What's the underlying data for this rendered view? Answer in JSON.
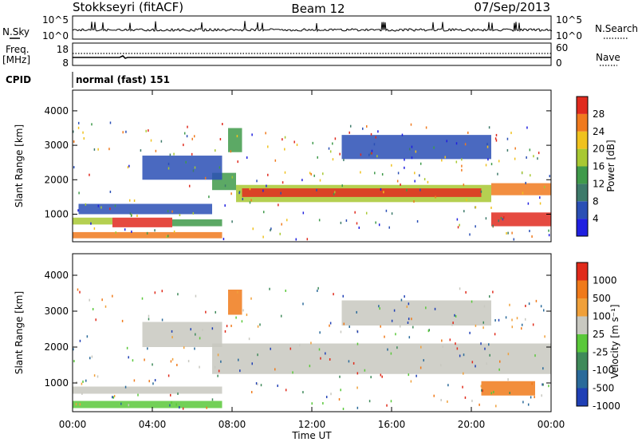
{
  "header": {
    "station": "Stokkseyri (fitACF)",
    "beam": "Beam 12",
    "date": "07/Sep/2013"
  },
  "panels": {
    "nsky_label": "N.Sky",
    "nsky_ticks": [
      "10^5",
      "10^0"
    ],
    "nsearch_label": "N.Search",
    "nsearch_ticks": [
      "10^5",
      "10^0"
    ],
    "freq_label_top": "Freq.",
    "freq_label_unit": "[MHz]",
    "freq_ticks": [
      "18",
      "8"
    ],
    "nave_label": "Nave",
    "nave_ticks": [
      "60",
      "0"
    ],
    "cpid_label": "CPID",
    "cpid_value": "normal (fast) 151"
  },
  "colors": {
    "power_scale": [
      "#1f1fe0",
      "#2a4fb5",
      "#3d7a6a",
      "#3f9a4a",
      "#a8c832",
      "#f0c21e",
      "#f07a1e",
      "#e02a1e"
    ],
    "velocity_scale": [
      "#1f3fb5",
      "#2a6a9a",
      "#3f8a5a",
      "#5ac83a",
      "#c8c8c0",
      "#f0a03a",
      "#f07a1a",
      "#e02a1a"
    ]
  },
  "chart_data": [
    {
      "type": "heatmap",
      "name": "power",
      "ylabel": "Slant Range [km]",
      "yticks": [
        1000,
        2000,
        3000,
        4000
      ],
      "ylim": [
        200,
        4600
      ],
      "xlim": [
        0,
        24
      ],
      "colorbar_label": "Power [dB]",
      "colorbar_ticks": [
        "4",
        "8",
        "12",
        "16",
        "20",
        "24",
        "28"
      ],
      "bands": [
        {
          "start": 0.0,
          "end": 7.5,
          "range_min": 300,
          "range_max": 480,
          "level": 6
        },
        {
          "start": 2.0,
          "end": 5.0,
          "range_min": 620,
          "range_max": 900,
          "level": 7
        },
        {
          "start": 0.0,
          "end": 2.0,
          "range_min": 700,
          "range_max": 900,
          "level": 4
        },
        {
          "start": 5.0,
          "end": 7.5,
          "range_min": 650,
          "range_max": 850,
          "level": 3
        },
        {
          "start": 0.3,
          "end": 7.0,
          "range_min": 1000,
          "range_max": 1300,
          "level": 1
        },
        {
          "start": 7.0,
          "end": 8.2,
          "range_min": 1700,
          "range_max": 2200,
          "level": 3
        },
        {
          "start": 8.2,
          "end": 21.0,
          "range_min": 1350,
          "range_max": 1850,
          "level": 4
        },
        {
          "start": 8.5,
          "end": 20.5,
          "range_min": 1500,
          "range_max": 1750,
          "level": 7
        },
        {
          "start": 21.0,
          "end": 24.0,
          "range_min": 1550,
          "range_max": 1900,
          "level": 6
        },
        {
          "start": 21.0,
          "end": 24.0,
          "range_min": 650,
          "range_max": 1050,
          "level": 7
        },
        {
          "start": 13.5,
          "end": 21.0,
          "range_min": 2600,
          "range_max": 3300,
          "level": 1
        },
        {
          "start": 3.5,
          "end": 7.5,
          "range_min": 2000,
          "range_max": 2700,
          "level": 1
        },
        {
          "start": 7.8,
          "end": 8.5,
          "range_min": 2800,
          "range_max": 3500,
          "level": 3
        }
      ]
    },
    {
      "type": "heatmap",
      "name": "velocity",
      "ylabel": "Slant Range [km]",
      "yticks": [
        1000,
        2000,
        3000,
        4000
      ],
      "ylim": [
        200,
        4600
      ],
      "xlim": [
        0,
        24
      ],
      "xticks": [
        "00:00",
        "04:00",
        "08:00",
        "12:00",
        "16:00",
        "20:00",
        "00:00"
      ],
      "xlabel": "Time UT",
      "colorbar_label": "Velocity [m s⁻¹]",
      "colorbar_ticks": [
        "-1000",
        "-500",
        "-100",
        "-25",
        "25",
        "100",
        "500",
        "1000"
      ],
      "bands": [
        {
          "start": 0.0,
          "end": 7.5,
          "range_min": 700,
          "range_max": 900,
          "level": 4
        },
        {
          "start": 0.0,
          "end": 7.5,
          "range_min": 300,
          "range_max": 500,
          "level": 3
        },
        {
          "start": 7.0,
          "end": 24.0,
          "range_min": 1250,
          "range_max": 2100,
          "level": 4
        },
        {
          "start": 3.5,
          "end": 7.5,
          "range_min": 2000,
          "range_max": 2700,
          "level": 4
        },
        {
          "start": 13.5,
          "end": 21.0,
          "range_min": 2600,
          "range_max": 3300,
          "level": 4
        },
        {
          "start": 20.5,
          "end": 23.2,
          "range_min": 650,
          "range_max": 1050,
          "level": 6
        },
        {
          "start": 7.8,
          "end": 8.5,
          "range_min": 2900,
          "range_max": 3600,
          "level": 6
        }
      ]
    }
  ]
}
